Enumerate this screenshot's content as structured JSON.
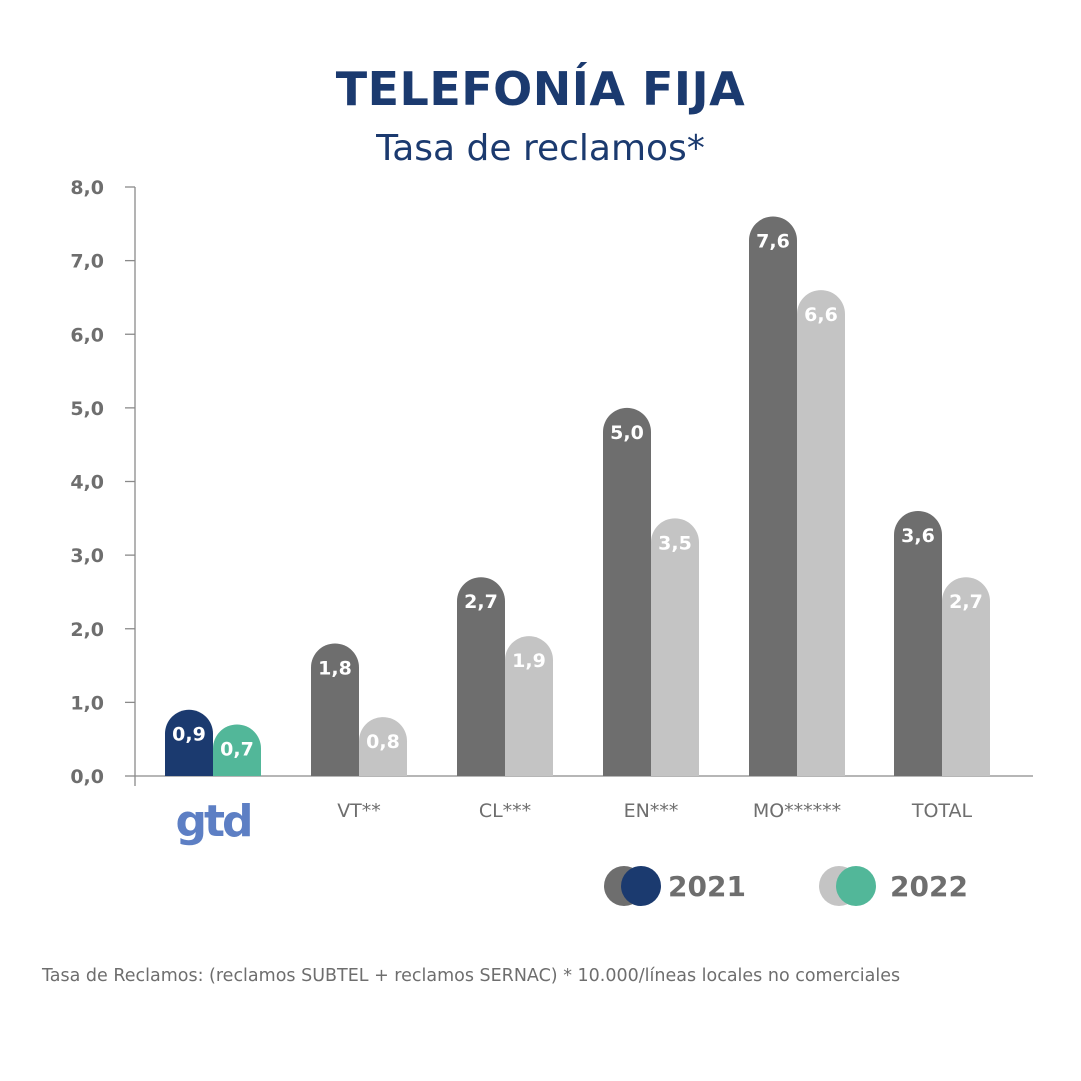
{
  "chart_data": {
    "type": "bar",
    "title": "TELEFONÍA FIJA",
    "subtitle": "Tasa de reclamos*",
    "categories": [
      "gtd",
      "VT**",
      "CL***",
      "EN***",
      "MO******",
      "TOTAL"
    ],
    "series": [
      {
        "name": "2021",
        "values": [
          0.9,
          1.8,
          2.7,
          5.0,
          7.6,
          3.6
        ]
      },
      {
        "name": "2022",
        "values": [
          0.7,
          0.8,
          1.9,
          3.5,
          6.6,
          2.7
        ]
      }
    ],
    "value_labels": [
      [
        "0,9",
        "1,8",
        "2,7",
        "5,0",
        "7,6",
        "3,6"
      ],
      [
        "0,7",
        "0,8",
        "1,9",
        "3,5",
        "6,6",
        "2,7"
      ]
    ],
    "ylim": [
      0,
      8
    ],
    "yticks": [
      "0,0",
      "1,0",
      "2,0",
      "3,0",
      "4,0",
      "5,0",
      "6,0",
      "7,0",
      "8,0"
    ],
    "grid": false,
    "legend_position": "bottom-right",
    "colors": {
      "series_2021": "#6e6e6e",
      "series_2022": "#c4c4c4",
      "highlight_2021": "#1b3a6f",
      "highlight_2022": "#52b799",
      "title": "#1b3a6f",
      "logo": "#5d7fc4"
    },
    "highlighted_category": "gtd",
    "footnote": "Tasa de Reclamos: (reclamos SUBTEL + reclamos SERNAC) * 10.000/líneas locales no comerciales"
  }
}
